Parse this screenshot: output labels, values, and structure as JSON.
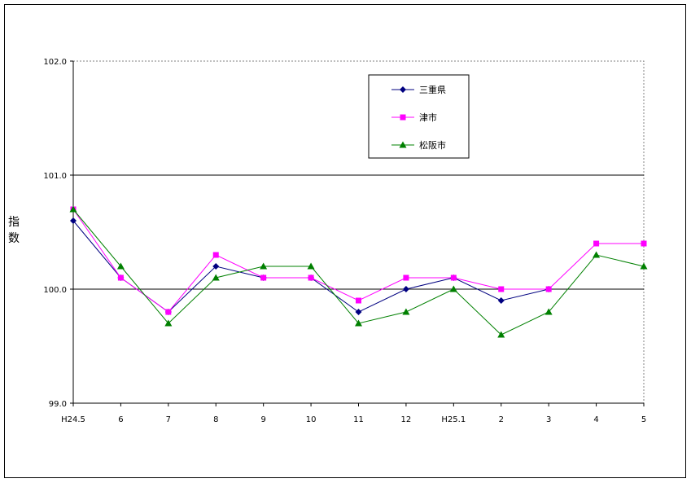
{
  "chart_data": {
    "type": "line",
    "ylabel": "指数",
    "ylim": [
      99.0,
      102.0
    ],
    "y_ticks": [
      "99.0",
      "100.0",
      "101.0",
      "102.0"
    ],
    "categories": [
      "H24.5",
      "6",
      "7",
      "8",
      "9",
      "10",
      "11",
      "12",
      "H25.1",
      "2",
      "3",
      "4",
      "5"
    ],
    "grid": true,
    "legend_position": "top-center",
    "series": [
      {
        "name": "三重県",
        "color": "#000080",
        "marker": "diamond",
        "values": [
          100.6,
          100.1,
          99.8,
          100.2,
          100.1,
          100.1,
          99.8,
          100.0,
          100.1,
          99.9,
          100.0,
          null,
          null
        ]
      },
      {
        "name": "津市",
        "color": "#ff00ff",
        "marker": "square",
        "values": [
          100.7,
          100.1,
          99.8,
          100.3,
          100.1,
          100.1,
          99.9,
          100.1,
          100.1,
          100.0,
          100.0,
          100.4,
          100.4
        ]
      },
      {
        "name": "松阪市",
        "color": "#008000",
        "marker": "triangle",
        "values": [
          100.7,
          100.2,
          99.7,
          100.1,
          100.2,
          100.2,
          99.7,
          99.8,
          100.0,
          99.6,
          99.8,
          100.3,
          100.2
        ]
      }
    ]
  }
}
